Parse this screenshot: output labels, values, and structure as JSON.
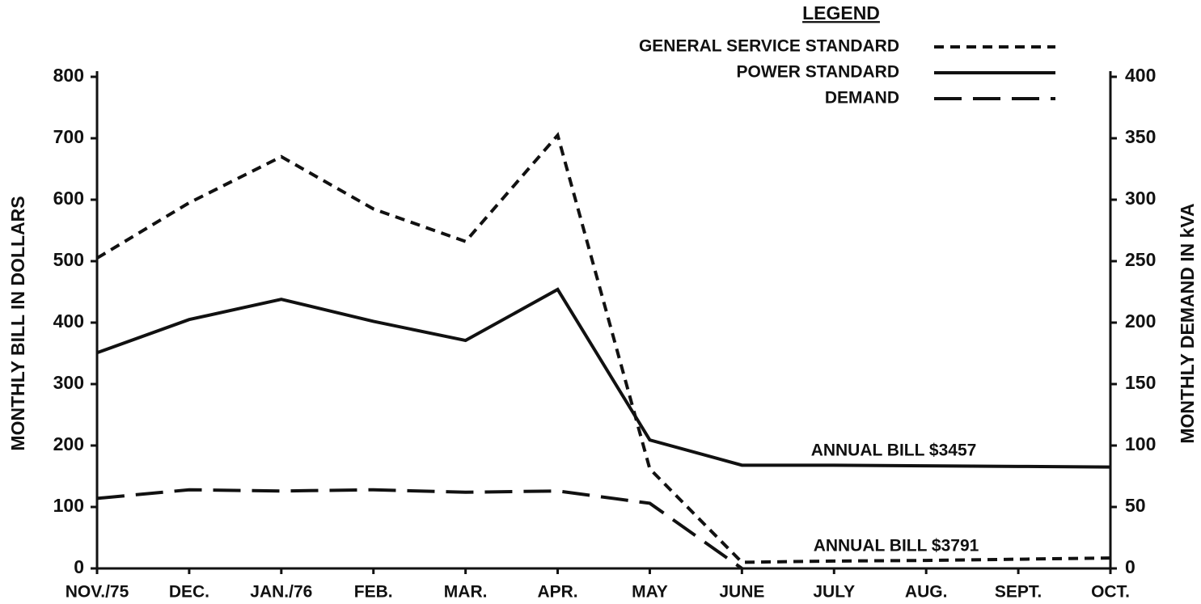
{
  "chart_data": {
    "type": "line",
    "legend_title": "LEGEND",
    "y_label": "MONTHLY BILL IN DOLLARS",
    "y2_label": "MONTHLY DEMAND IN kVA",
    "categories": [
      "NOV./75",
      "DEC.",
      "JAN./76",
      "FEB.",
      "MAR.",
      "APR.",
      "MAY",
      "JUNE",
      "JULY",
      "AUG.",
      "SEPT.",
      "OCT."
    ],
    "series": [
      {
        "name": "GENERAL SERVICE STANDARD",
        "color": "#111111",
        "dash": "short",
        "values": [
          505,
          595,
          670,
          585,
          532,
          705,
          162,
          10,
          12,
          13,
          15,
          17
        ]
      },
      {
        "name": "POWER STANDARD",
        "color": "#111111",
        "dash": "solid",
        "values": [
          351,
          405,
          438,
          402,
          371,
          454,
          209,
          168,
          168,
          167,
          166,
          165
        ]
      },
      {
        "name": "DEMAND",
        "color": "#111111",
        "dash": "long",
        "axis": "y2",
        "values": [
          57,
          64,
          63,
          64,
          62,
          63,
          53,
          0,
          null,
          null,
          null,
          null
        ]
      }
    ],
    "annotations": [
      "ANNUAL BILL $3457",
      "ANNUAL BILL $3791"
    ],
    "ylim": [
      0,
      800
    ],
    "yticks": [
      0,
      100,
      200,
      300,
      400,
      500,
      600,
      700,
      800
    ],
    "y2lim": [
      0,
      400
    ],
    "y2ticks": [
      0,
      50,
      100,
      150,
      200,
      250,
      300,
      350,
      400
    ]
  }
}
